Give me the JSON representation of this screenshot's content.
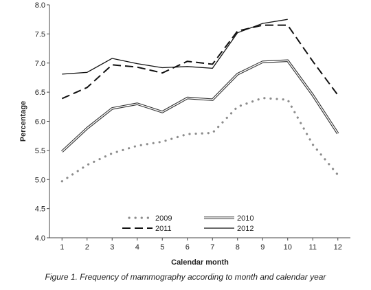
{
  "chart_data": {
    "type": "line",
    "title": "",
    "xlabel": "Calendar month",
    "ylabel": "Percentage",
    "x": [
      1,
      2,
      3,
      4,
      5,
      6,
      7,
      8,
      9,
      10,
      11,
      12
    ],
    "xticks": [
      "1",
      "2",
      "3",
      "4",
      "5",
      "6",
      "7",
      "8",
      "9",
      "10",
      "11",
      "12"
    ],
    "ylim": [
      4.0,
      8.0
    ],
    "yticks": [
      "4.0",
      "4.5",
      "5.0",
      "5.5",
      "6.0",
      "6.5",
      "7.0",
      "7.5",
      "8.0"
    ],
    "grid": false,
    "legend_position": "bottom-center",
    "series": [
      {
        "name": "2009",
        "style": "dotted",
        "values": [
          4.97,
          5.25,
          5.45,
          5.58,
          5.65,
          5.78,
          5.8,
          6.25,
          6.4,
          6.37,
          5.6,
          5.08
        ]
      },
      {
        "name": "2010",
        "style": "double",
        "values": [
          5.48,
          5.88,
          6.22,
          6.3,
          6.16,
          6.4,
          6.37,
          6.81,
          7.02,
          7.04,
          6.45,
          5.79
        ]
      },
      {
        "name": "2011",
        "style": "dashed",
        "values": [
          6.39,
          6.58,
          6.97,
          6.93,
          6.83,
          7.03,
          6.98,
          7.55,
          7.65,
          7.65,
          7.03,
          6.45
        ]
      },
      {
        "name": "2012",
        "style": "solid",
        "values": [
          6.81,
          6.84,
          7.08,
          6.99,
          6.92,
          6.94,
          6.91,
          7.52,
          7.68,
          7.75,
          null,
          null
        ]
      }
    ]
  },
  "caption": "Figure 1. Frequency of mammography according to month and calendar year"
}
